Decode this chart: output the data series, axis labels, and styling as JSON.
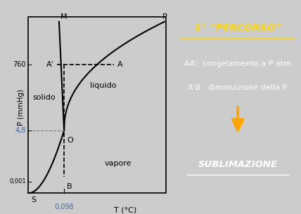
{
  "fig_width": 4.28,
  "fig_height": 3.05,
  "left_panel_bg": "#ffffff",
  "right_panel_bg": "#00008B",
  "fig_bg": "#cccccc",
  "title_right": "1° “PERCORSO”",
  "title_color": "#FFD700",
  "line1": "AA': congelamento a P atm",
  "line2": "A'B : diminuizione della P",
  "sublimazione": "SUBLIMAZIONE",
  "text_color": "#ffffff",
  "arrow_color": "#FFA500",
  "ylabel": "P (mmHg)",
  "xlabel": "T (°C)",
  "label_760": "760",
  "label_4_8": "4,8",
  "label_0001": "0,001",
  "label_0098": "0,098",
  "label_M": "M",
  "label_P": "P",
  "label_S": "S",
  "label_O": "O",
  "label_A": "A",
  "label_Aprime": "A'",
  "label_B": "B",
  "label_liquido": "liquido",
  "label_solido": "solido",
  "label_vapore": "vapore",
  "curve_color": "#000000",
  "anno_color": "#4169aa"
}
